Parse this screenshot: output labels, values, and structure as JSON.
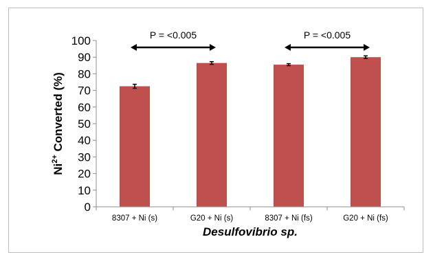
{
  "chart_data": {
    "type": "bar",
    "categories": [
      "8307 + Ni (s)",
      "G20 + Ni (s)",
      "8307 + Ni (fs)",
      "G20 + Ni (fs)"
    ],
    "values": [
      72.5,
      86.5,
      85.5,
      90
    ],
    "errors": [
      1.2,
      0.8,
      0.6,
      0.8
    ],
    "ylim": [
      0,
      100
    ],
    "yticks": [
      0,
      10,
      20,
      30,
      40,
      50,
      60,
      70,
      80,
      90,
      100
    ],
    "ylabel": {
      "base": "Ni",
      "sup": "2+",
      "rest": " Converted (%)"
    },
    "xlabel": "Desulfovibrio sp.",
    "grid": false,
    "bar_color": "#c0504d",
    "annotations": [
      {
        "text": "P = <0.005",
        "from": 0,
        "to": 1
      },
      {
        "text": "P = <0.005",
        "from": 2,
        "to": 3
      }
    ]
  }
}
